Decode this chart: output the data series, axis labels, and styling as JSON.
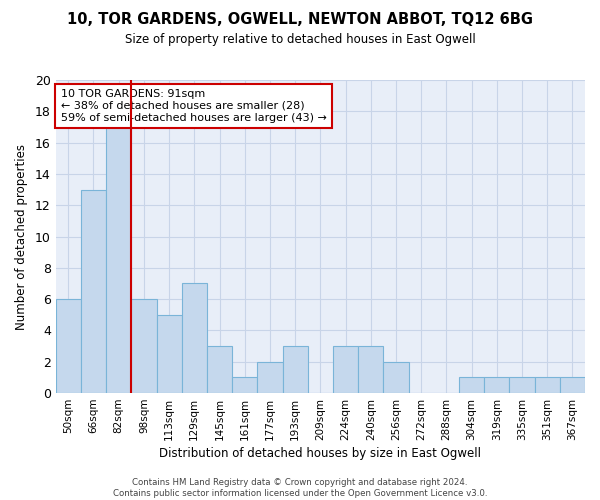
{
  "title": "10, TOR GARDENS, OGWELL, NEWTON ABBOT, TQ12 6BG",
  "subtitle": "Size of property relative to detached houses in East Ogwell",
  "xlabel": "Distribution of detached houses by size in East Ogwell",
  "ylabel": "Number of detached properties",
  "bin_labels": [
    "50sqm",
    "66sqm",
    "82sqm",
    "98sqm",
    "113sqm",
    "129sqm",
    "145sqm",
    "161sqm",
    "177sqm",
    "193sqm",
    "209sqm",
    "224sqm",
    "240sqm",
    "256sqm",
    "272sqm",
    "288sqm",
    "304sqm",
    "319sqm",
    "335sqm",
    "351sqm",
    "367sqm"
  ],
  "bar_heights": [
    6,
    13,
    17,
    6,
    5,
    7,
    3,
    1,
    2,
    3,
    0,
    3,
    3,
    2,
    0,
    0,
    1,
    1,
    1,
    1,
    1
  ],
  "bar_color": "#c5d8ed",
  "bar_edge_color": "#7ab4d8",
  "red_line_bin_index": 2,
  "annotation_text": "10 TOR GARDENS: 91sqm\n← 38% of detached houses are smaller (28)\n59% of semi-detached houses are larger (43) →",
  "annotation_box_color": "#ffffff",
  "annotation_box_edge": "#cc0000",
  "red_line_color": "#cc0000",
  "ylim": [
    0,
    20
  ],
  "yticks": [
    0,
    2,
    4,
    6,
    8,
    10,
    12,
    14,
    16,
    18,
    20
  ],
  "grid_color": "#c8d4e8",
  "background_color": "#e8eef8",
  "footer": "Contains HM Land Registry data © Crown copyright and database right 2024.\nContains public sector information licensed under the Open Government Licence v3.0."
}
